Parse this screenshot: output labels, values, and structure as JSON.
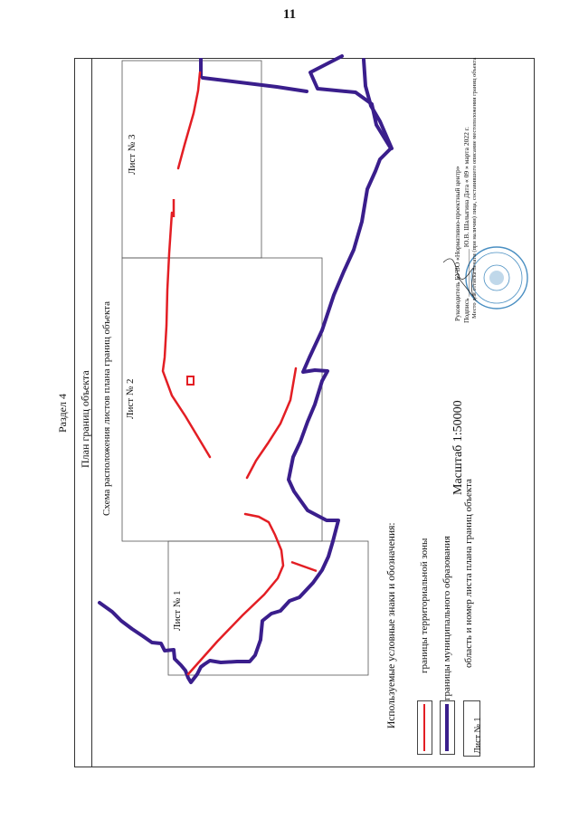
{
  "page_number": "11",
  "section": "Раздел 4",
  "title": "План границ объекта",
  "scheme_title": "Схема расположения листов плана границ объекта",
  "scale": "Масштаб 1:50000",
  "sheets": [
    "Лист № 1",
    "Лист № 2",
    "Лист № 3"
  ],
  "legend": {
    "title": "Используемые условные знаки и обозначения:",
    "items": [
      {
        "label": "границы территориальной зоны",
        "color": "#e31e24"
      },
      {
        "label": "границы муниципального образования",
        "color": "#3a1e8c"
      },
      {
        "label": "область и номер листа плана границ объекта",
        "sample": "Лист № 1"
      }
    ]
  },
  "signature": {
    "line1": "Руководитель БУВО «Нормативно-проектный центр»",
    "line2": "Подпись ______________ Ю.В. Шалыгина   Дата « 09 »      марта      2022 г.",
    "line3": "Место для оттиска печати (при наличии) лица, составившего описание местоположения границ объекта",
    "stamp_color": "#4a8fc2"
  }
}
